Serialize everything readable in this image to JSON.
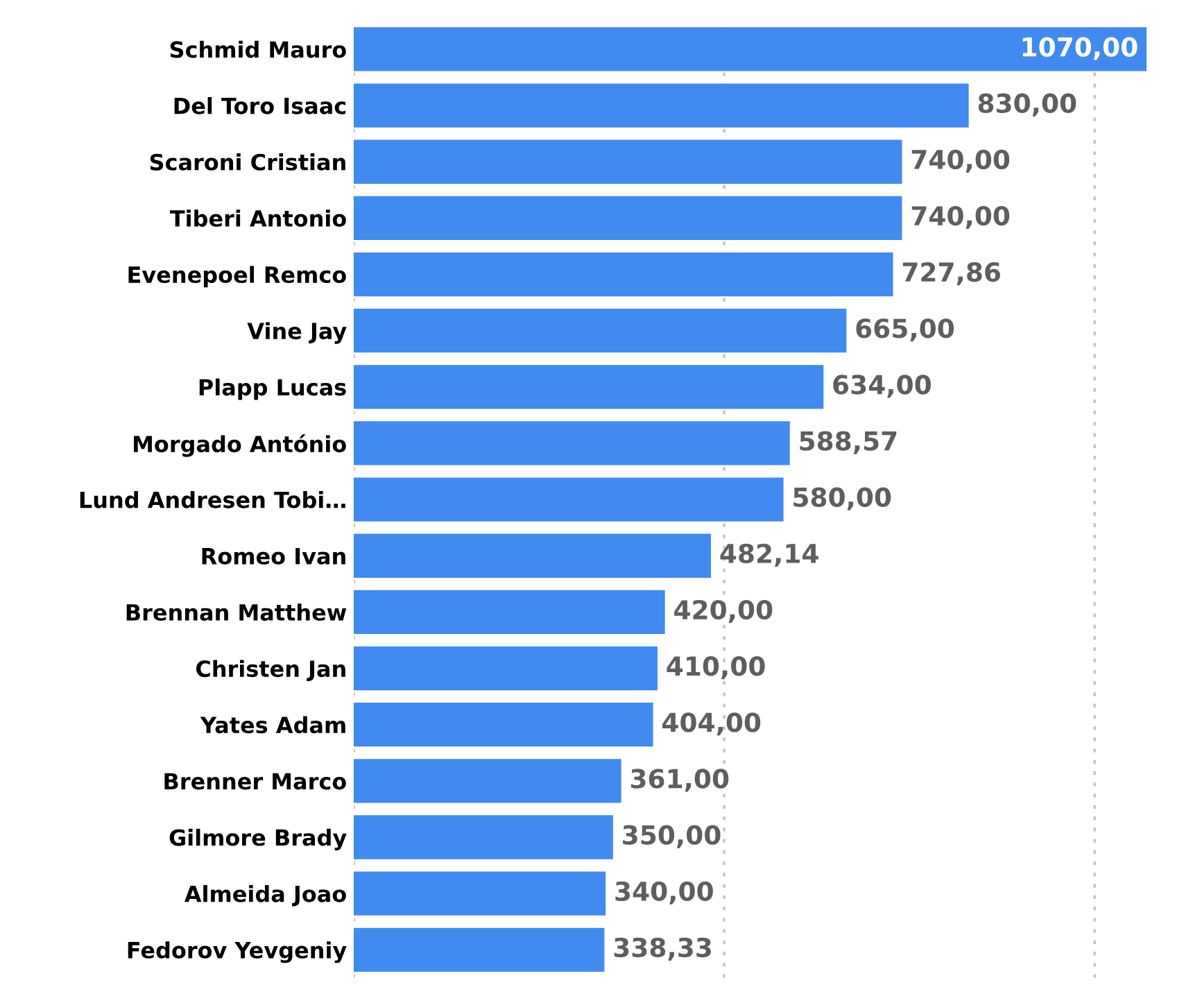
{
  "chart_data": {
    "type": "bar",
    "orientation": "horizontal",
    "categories": [
      "Schmid Mauro",
      "Del Toro Isaac",
      "Scaroni Cristian",
      "Tiberi Antonio",
      "Evenepoel Remco",
      "Vine Jay",
      "Plapp Lucas",
      "Morgado António",
      "Lund Andresen Tobi…",
      "Romeo Ivan",
      "Brennan Matthew",
      "Christen Jan",
      "Yates Adam",
      "Brenner Marco",
      "Gilmore Brady",
      "Almeida Joao",
      "Fedorov Yevgeniy"
    ],
    "values": [
      1070,
      830,
      740,
      740,
      727.86,
      665,
      634,
      588.57,
      580,
      482.14,
      420,
      410,
      404,
      361,
      350,
      340,
      338.33
    ],
    "value_labels": [
      "1070,00",
      "830,00",
      "740,00",
      "740,00",
      "727,86",
      "665,00",
      "634,00",
      "588,57",
      "580,00",
      "482,14",
      "420,00",
      "410,00",
      "404,00",
      "361,00",
      "350,00",
      "340,00",
      "338,33"
    ],
    "color": "#418af0",
    "ref_lines": [
      {
        "axis": "x",
        "value": 0,
        "color": "#c8c6c4",
        "line_style": "dotted"
      },
      {
        "axis": "x",
        "value": 500,
        "color": "#c8c6c4",
        "line_style": "dotted"
      },
      {
        "axis": "x",
        "value": 1000,
        "color": "#c8c6c4",
        "line_style": "dotted"
      }
    ]
  }
}
